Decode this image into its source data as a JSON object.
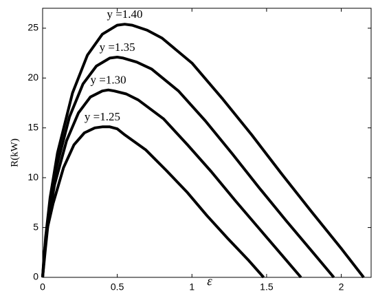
{
  "chart_data": {
    "type": "line",
    "xlabel": "ε",
    "ylabel": "R(kW)",
    "xlim": [
      0,
      2.2
    ],
    "ylim": [
      0,
      27
    ],
    "xticks": [
      0,
      0.5,
      1,
      1.5,
      2
    ],
    "yticks": [
      0,
      5,
      10,
      15,
      20,
      25
    ],
    "series": [
      {
        "name": "y =1.40",
        "color": "#000000",
        "x": [
          0,
          0.02,
          0.05,
          0.1,
          0.2,
          0.3,
          0.4,
          0.5,
          0.55,
          0.6,
          0.7,
          0.8,
          1.0,
          1.2,
          1.4,
          1.6,
          1.8,
          2.0,
          2.15
        ],
        "values": [
          0,
          4,
          8,
          12.5,
          18.5,
          22.3,
          24.4,
          25.3,
          25.4,
          25.3,
          24.8,
          24,
          21.5,
          18,
          14.3,
          10.4,
          6.6,
          2.9,
          0
        ]
      },
      {
        "name": "y =1.35",
        "color": "#000000",
        "x": [
          0,
          0.02,
          0.05,
          0.09,
          0.18,
          0.27,
          0.36,
          0.45,
          0.5,
          0.54,
          0.63,
          0.73,
          0.91,
          1.09,
          1.27,
          1.45,
          1.63,
          1.81,
          1.95
        ],
        "values": [
          0,
          3.5,
          7,
          10.9,
          16.1,
          19.4,
          21.2,
          22,
          22.1,
          22,
          21.6,
          20.9,
          18.7,
          15.7,
          12.4,
          9,
          5.7,
          2.5,
          0
        ]
      },
      {
        "name": "y =1.30",
        "color": "#000000",
        "x": [
          0,
          0.02,
          0.04,
          0.08,
          0.16,
          0.24,
          0.32,
          0.4,
          0.44,
          0.48,
          0.56,
          0.64,
          0.81,
          0.97,
          1.13,
          1.29,
          1.45,
          1.61,
          1.73
        ],
        "values": [
          0,
          3,
          5.9,
          9.3,
          13.7,
          16.5,
          18.1,
          18.7,
          18.8,
          18.7,
          18.4,
          17.8,
          15.9,
          13.3,
          10.6,
          7.7,
          4.9,
          2.1,
          0
        ]
      },
      {
        "name": "y =1.25",
        "color": "#000000",
        "x": [
          0,
          0.01,
          0.03,
          0.07,
          0.14,
          0.21,
          0.28,
          0.35,
          0.4,
          0.45,
          0.5,
          0.55,
          0.69,
          0.83,
          0.97,
          1.1,
          1.24,
          1.38,
          1.48
        ],
        "values": [
          0,
          2.4,
          4.8,
          7.4,
          11,
          13.3,
          14.5,
          15,
          15.1,
          15.1,
          14.9,
          14.3,
          12.8,
          10.7,
          8.5,
          6.2,
          3.9,
          1.7,
          0
        ]
      }
    ]
  }
}
